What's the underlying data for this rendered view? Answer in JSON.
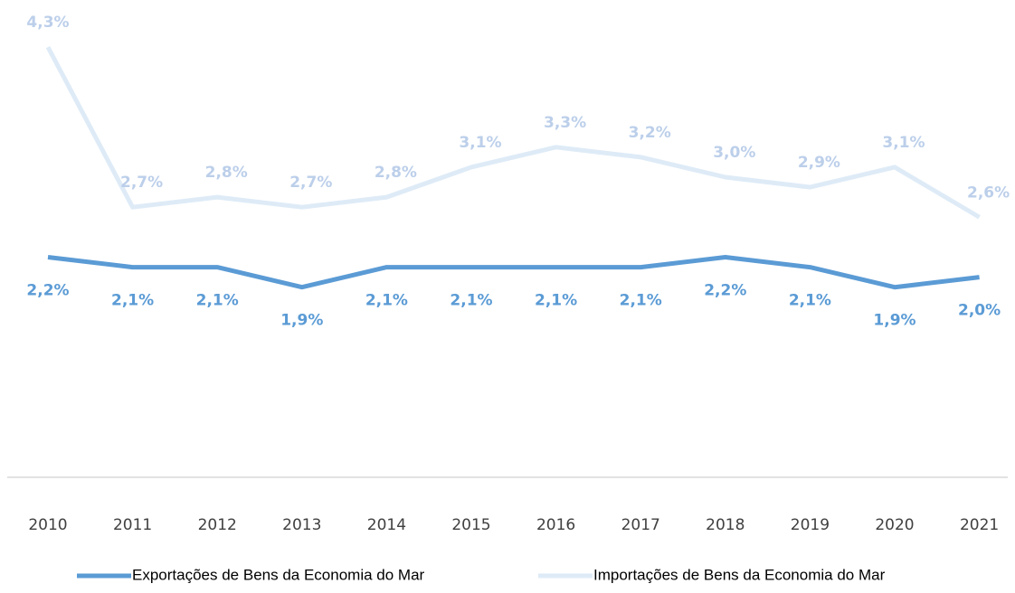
{
  "chart_data": {
    "type": "line",
    "categories": [
      "2010",
      "2011",
      "2012",
      "2013",
      "2014",
      "2015",
      "2016",
      "2017",
      "2018",
      "2019",
      "2020",
      "2021"
    ],
    "series": [
      {
        "name": "Exportações de Bens da Economia do Mar",
        "color": "#5b9bd5",
        "label_color": "#5b9bd5",
        "values": [
          2.2,
          2.1,
          2.1,
          1.9,
          2.1,
          2.1,
          2.1,
          2.1,
          2.2,
          2.1,
          1.9,
          2.0
        ],
        "value_labels": [
          "2,2%",
          "2,1%",
          "2,1%",
          "1,9%",
          "2,1%",
          "2,1%",
          "2,1%",
          "2,1%",
          "2,2%",
          "2,1%",
          "1,9%",
          "2,0%"
        ]
      },
      {
        "name": "Importações de Bens da Economia do Mar",
        "color": "#deebf7",
        "label_color": "#bccfea",
        "values": [
          4.3,
          2.7,
          2.8,
          2.7,
          2.8,
          3.1,
          3.3,
          3.2,
          3.0,
          2.9,
          3.1,
          2.6
        ],
        "value_labels": [
          "4,3%",
          "2,7%",
          "2,8%",
          "2,7%",
          "2,8%",
          "3,1%",
          "3,3%",
          "3,2%",
          "3,0%",
          "2,9%",
          "3,1%",
          "2,6%"
        ]
      }
    ],
    "ylim": [
      0,
      4.5
    ],
    "legend": "bottom"
  }
}
